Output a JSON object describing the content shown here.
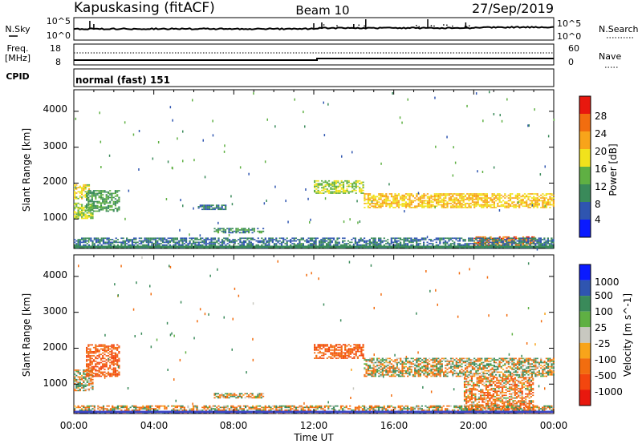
{
  "header": {
    "station": "Kapuskasing (fitACF)",
    "beam": "Beam 10",
    "date": "27/Sep/2019"
  },
  "side_labels": {
    "nsky": "N.Sky",
    "nsearch": "N.Search",
    "freq": "Freq.",
    "freq_unit": "[MHz]",
    "nave": "Nave",
    "cpid": "CPID"
  },
  "cpid_text": "normal (fast) 151",
  "noise_axis": {
    "left_ticks": [
      "10^5",
      "10^0"
    ],
    "right_ticks": [
      "10^5",
      "10^0"
    ]
  },
  "freq_axis": {
    "left_ticks": [
      "18",
      "8"
    ],
    "right_ticks": [
      "60",
      "0"
    ]
  },
  "x_axis": {
    "label": "Time UT",
    "ticks": [
      "00:00",
      "04:00",
      "08:00",
      "12:00",
      "16:00",
      "20:00",
      "00:00"
    ]
  },
  "colors": {
    "power": [
      "#0a1aff",
      "#2f55b0",
      "#3a8a5a",
      "#5fb043",
      "#f1e21c",
      "#f8a41a",
      "#f26d0f",
      "#e8180e"
    ],
    "velocity": [
      "#0a1aff",
      "#2f55b0",
      "#3a8a5a",
      "#5fb043",
      "#c8c8c0",
      "#f8a41a",
      "#f26d0f",
      "#f3460e",
      "#e8180e"
    ]
  },
  "chart_data": [
    {
      "type": "heatmap",
      "title": "",
      "xlabel": "",
      "ylabel": "Slant Range [km]",
      "xlim": [
        0,
        24
      ],
      "ylim": [
        180,
        4600
      ],
      "yticks": [
        "1000",
        "2000",
        "3000",
        "4000"
      ],
      "colorbar": {
        "label": "Power [dB]",
        "ticks": [
          "4",
          "8",
          "12",
          "16",
          "20",
          "24",
          "28"
        ]
      },
      "echo_regions": [
        {
          "t": [
            0.0,
            0.9
          ],
          "range": [
            1000,
            1450
          ],
          "power_db": 16
        },
        {
          "t": [
            0.0,
            0.8
          ],
          "range": [
            1550,
            1950
          ],
          "power_db": 18
        },
        {
          "t": [
            0.6,
            2.3
          ],
          "range": [
            1200,
            1800
          ],
          "power_db": 12
        },
        {
          "t": [
            6.2,
            7.6
          ],
          "range": [
            1250,
            1380
          ],
          "power_db": 8
        },
        {
          "t": [
            7.0,
            9.5
          ],
          "range": [
            600,
            750
          ],
          "power_db": 10
        },
        {
          "t": [
            12.0,
            14.5
          ],
          "range": [
            1700,
            2050
          ],
          "power_db": 16
        },
        {
          "t": [
            14.5,
            24.0
          ],
          "range": [
            1300,
            1700
          ],
          "power_db": 20
        },
        {
          "t": [
            20.0,
            23.0
          ],
          "range": [
            250,
            500
          ],
          "power_db": 26
        },
        {
          "t": [
            0.0,
            24.0
          ],
          "range": [
            180,
            450
          ],
          "power_db": 8
        }
      ]
    },
    {
      "type": "heatmap",
      "title": "",
      "xlabel": "Time UT",
      "ylabel": "Slant Range [km]",
      "xlim": [
        0,
        24
      ],
      "ylim": [
        180,
        4600
      ],
      "yticks": [
        "1000",
        "2000",
        "3000",
        "4000"
      ],
      "colorbar": {
        "label": "Velocity [m s^-1]",
        "ticks": [
          "1000",
          "500",
          "100",
          "25",
          "-25",
          "-100",
          "-500",
          "-1000"
        ]
      },
      "echo_regions": [
        {
          "t": [
            0.0,
            0.9
          ],
          "range": [
            800,
            1400
          ],
          "velocity_ms": 0
        },
        {
          "t": [
            0.6,
            2.3
          ],
          "range": [
            1200,
            2100
          ],
          "velocity_ms": -300
        },
        {
          "t": [
            7.0,
            9.5
          ],
          "range": [
            600,
            750
          ],
          "velocity_ms": -50
        },
        {
          "t": [
            12.0,
            14.5
          ],
          "range": [
            1700,
            2100
          ],
          "velocity_ms": -300
        },
        {
          "t": [
            14.5,
            24.0
          ],
          "range": [
            1200,
            1700
          ],
          "velocity_ms": 0
        },
        {
          "t": [
            19.5,
            23.0
          ],
          "range": [
            250,
            1200
          ],
          "velocity_ms": -150
        },
        {
          "t": [
            0.0,
            24.0
          ],
          "range": [
            180,
            400
          ],
          "velocity_ms": -50
        }
      ]
    }
  ]
}
